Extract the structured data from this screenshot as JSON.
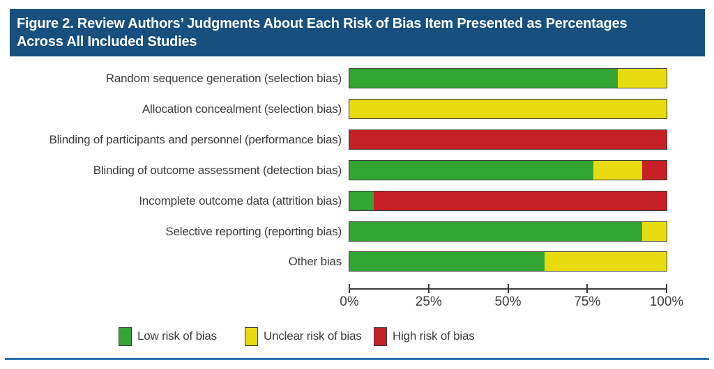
{
  "header": {
    "title_lines": [
      "Figure 2. Review Authors’ Judgments About Each Risk of Bias Item Presented as Percentages",
      "Across All Included Studies"
    ]
  },
  "colors": {
    "header_bg": "#174f7e",
    "bottom_rule": "#2e75b6",
    "low": "#32a532",
    "unclear": "#e6dc10",
    "high": "#c62126",
    "bar_border": "#3a3a3a",
    "text": "#3c3c3c"
  },
  "chart_data": {
    "type": "bar",
    "orientation": "horizontal",
    "stacked": true,
    "grid": false,
    "legend_position": "bottom",
    "xlim": [
      0,
      100
    ],
    "x_ticks": [
      "0%",
      "25%",
      "50%",
      "75%",
      "100%"
    ],
    "categories": [
      "Random sequence generation (selection bias)",
      "Allocation concealment (selection bias)",
      "Blinding of participants and personnel (performance bias)",
      "Blinding of outcome assessment (detection bias)",
      "Incomplete outcome data (attrition bias)",
      "Selective reporting (reporting bias)",
      "Other bias"
    ],
    "series": [
      {
        "id": "low",
        "name": "Low risk of bias",
        "color": "#32a532",
        "values": [
          84.6,
          0,
          0,
          76.9,
          7.7,
          92.3,
          61.5
        ]
      },
      {
        "id": "unclear",
        "name": "Unclear risk of bias",
        "color": "#e6dc10",
        "values": [
          15.4,
          100,
          0,
          15.4,
          0,
          7.7,
          38.5
        ]
      },
      {
        "id": "high",
        "name": "High risk of bias",
        "color": "#c62126",
        "values": [
          0,
          0,
          100,
          7.7,
          92.3,
          0,
          0
        ]
      }
    ]
  },
  "legend": {
    "items": [
      {
        "label": "Low risk of bias",
        "color": "#32a532"
      },
      {
        "label": "Unclear risk of bias",
        "color": "#e6dc10"
      },
      {
        "label": "High risk of bias",
        "color": "#c62126"
      }
    ]
  }
}
